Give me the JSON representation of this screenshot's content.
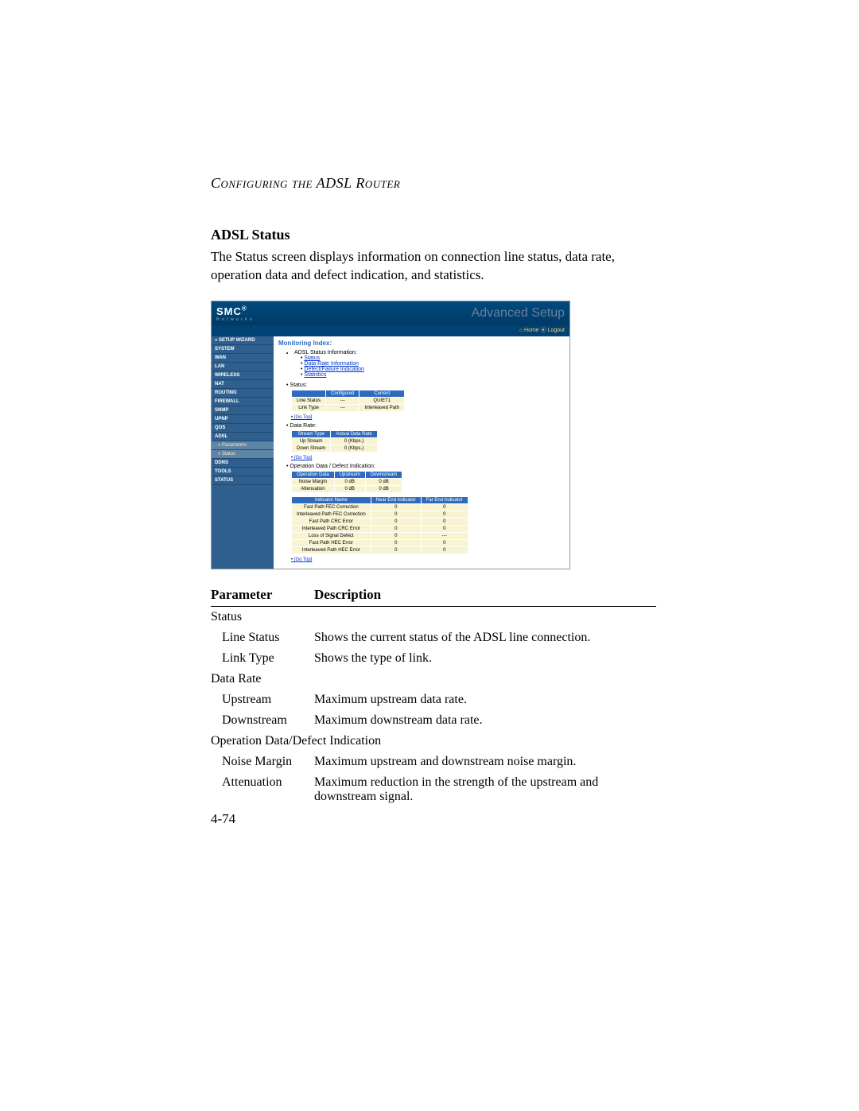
{
  "runningHead": "Configuring the ADSL Router",
  "sectionTitle": "ADSL Status",
  "bodyText": "The Status screen displays information on connection line status, data rate, operation data and defect indication, and statistics.",
  "pageNumber": "4-74",
  "screenshot": {
    "logo": "SMC",
    "logoSup": "®",
    "logoSub": "N e t w o r k s",
    "advanced": "Advanced Setup",
    "topLinks": "⌂ Home  ⦿ Logout",
    "nav": {
      "setup": "» SETUP WIZARD",
      "items": [
        "SYSTEM",
        "WAN",
        "LAN",
        "WIRELESS",
        "NAT",
        "ROUTING",
        "FIREWALL",
        "SNMP",
        "UPnP",
        "QoS",
        "ADSL"
      ],
      "subs": [
        "» Parameters",
        "» Status"
      ],
      "rest": [
        "DDNS",
        "TOOLS",
        "STATUS"
      ]
    },
    "monitoringIndex": "Monitoring Index:",
    "adslInfoLabel": "ADSL Status Information:",
    "links": [
      "Status",
      "Data Rate Information",
      "Defect/Failure Indication",
      "Statistics"
    ],
    "statusLabel": "Status:",
    "statusTable": {
      "headers": [
        "",
        "Configured",
        "Current"
      ],
      "rows": [
        [
          "Line Status",
          "---",
          "QUIET1"
        ],
        [
          "Link Type",
          "---",
          "Interleaved Path"
        ]
      ]
    },
    "goTop": "[Go Top]",
    "dataRateLabel": "Data Rate:",
    "dataRateTable": {
      "headers": [
        "Stream Type",
        "Actual Data Rate"
      ],
      "rows": [
        [
          "Up Stream",
          "0 (Kbps.)"
        ],
        [
          "Down Stream",
          "0 (Kbps.)"
        ]
      ]
    },
    "opLabel": "Operation Data / Defect Indication:",
    "opTable1": {
      "headers": [
        "Operation Data",
        "Upstream",
        "Downstream"
      ],
      "rows": [
        [
          "Noise Margin",
          "0 dB",
          "0 dB"
        ],
        [
          "Attenuation",
          "0 dB",
          "0 dB"
        ]
      ]
    },
    "opTable2": {
      "headers": [
        "Indicator Name",
        "Near End Indicator",
        "Far End Indicator"
      ],
      "rows": [
        [
          "Fast Path FEC Correction",
          "0",
          "0"
        ],
        [
          "Interleaved Path FEC Correction",
          "0",
          "0"
        ],
        [
          "Fast Path CRC Error",
          "0",
          "0"
        ],
        [
          "Interleaved Path CRC Error",
          "0",
          "0"
        ],
        [
          "Loss of Signal Defect",
          "0",
          "---"
        ],
        [
          "Fast Path HEC Error",
          "0",
          "0"
        ],
        [
          "Interleaved Path HEC Error",
          "0",
          "0"
        ]
      ]
    }
  },
  "descTable": {
    "headParam": "Parameter",
    "headDesc": "Description",
    "rows": [
      {
        "type": "cat",
        "p": "Status",
        "d": ""
      },
      {
        "type": "row",
        "p": "Line Status",
        "d": "Shows the current status of the ADSL line connection."
      },
      {
        "type": "row",
        "p": "Link Type",
        "d": "Shows the type of link."
      },
      {
        "type": "cat",
        "p": "Data Rate",
        "d": ""
      },
      {
        "type": "row",
        "p": "Upstream",
        "d": "Maximum upstream data rate."
      },
      {
        "type": "row",
        "p": "Downstream",
        "d": "Maximum downstream data rate."
      },
      {
        "type": "cat",
        "p": "Operation Data/Defect Indication",
        "d": ""
      },
      {
        "type": "row",
        "p": "Noise Margin",
        "d": "Maximum upstream and downstream noise margin."
      },
      {
        "type": "row",
        "p": "Attenuation",
        "d": "Maximum reduction in the strength of the upstream and downstream signal."
      }
    ]
  }
}
